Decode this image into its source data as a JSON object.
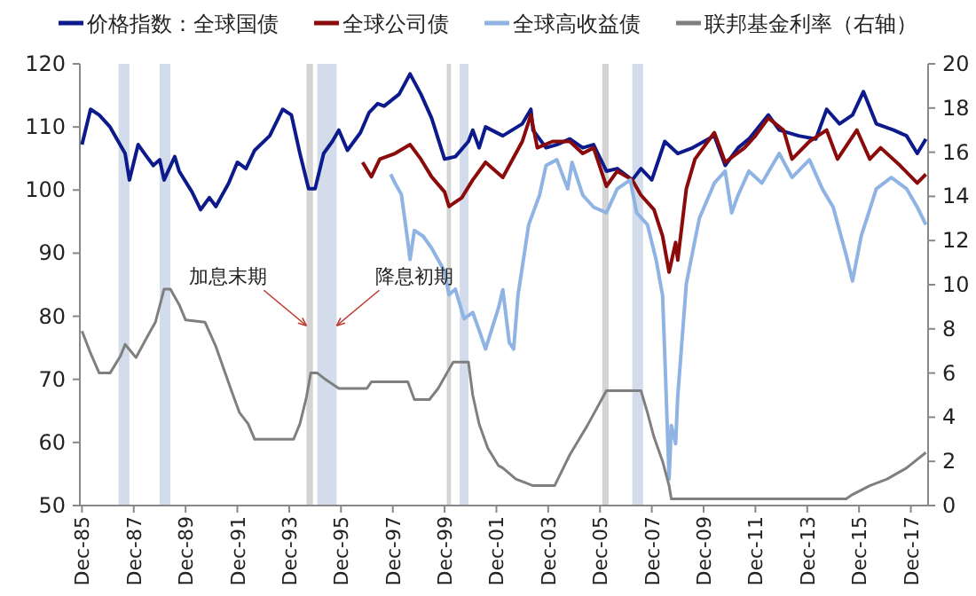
{
  "chart_data": {
    "type": "line",
    "legend": "top",
    "xlim": [
      "1985-11",
      "2018-08"
    ],
    "xticks": [
      {
        "value": "1985-12",
        "label": "Dec-85"
      },
      {
        "value": "1987-12",
        "label": "Dec-87"
      },
      {
        "value": "1989-12",
        "label": "Dec-89"
      },
      {
        "value": "1991-12",
        "label": "Dec-91"
      },
      {
        "value": "1993-12",
        "label": "Dec-93"
      },
      {
        "value": "1995-12",
        "label": "Dec-95"
      },
      {
        "value": "1997-12",
        "label": "Dec-97"
      },
      {
        "value": "1999-12",
        "label": "Dec-99"
      },
      {
        "value": "2001-12",
        "label": "Dec-01"
      },
      {
        "value": "2003-12",
        "label": "Dec-03"
      },
      {
        "value": "2005-12",
        "label": "Dec-05"
      },
      {
        "value": "2007-12",
        "label": "Dec-07"
      },
      {
        "value": "2009-12",
        "label": "Dec-09"
      },
      {
        "value": "2011-12",
        "label": "Dec-11"
      },
      {
        "value": "2013-12",
        "label": "Dec-13"
      },
      {
        "value": "2015-12",
        "label": "Dec-15"
      },
      {
        "value": "2017-12",
        "label": "Dec-17"
      }
    ],
    "ylim": [
      50,
      120
    ],
    "yticks": [
      50,
      60,
      70,
      80,
      90,
      100,
      110,
      120
    ],
    "y2lim": [
      0,
      20
    ],
    "y2ticks": [
      0,
      2,
      4,
      6,
      8,
      10,
      12,
      14,
      16,
      18,
      20
    ],
    "bands": [
      {
        "axis": "x",
        "from": "1987-05",
        "to": "1987-10",
        "color": "#d3dcea"
      },
      {
        "axis": "x",
        "from": "1988-12",
        "to": "1989-05",
        "color": "#d3dcea"
      },
      {
        "axis": "x",
        "from": "1994-08",
        "to": "1994-11",
        "color": "#d4d4d4"
      },
      {
        "axis": "x",
        "from": "1995-01",
        "to": "1995-10",
        "color": "#d3dcea"
      },
      {
        "axis": "x",
        "from": "2000-01",
        "to": "2000-03",
        "color": "#d4d4d4"
      },
      {
        "axis": "x",
        "from": "2000-07",
        "to": "2000-11",
        "color": "#d3dcea"
      },
      {
        "axis": "x",
        "from": "2006-01",
        "to": "2006-04",
        "color": "#d4d4d4"
      },
      {
        "axis": "x",
        "from": "2007-03",
        "to": "2007-08",
        "color": "#d3dcea"
      }
    ],
    "annotations": [
      {
        "text": "加息末期",
        "x": "1994-08",
        "y": 78.5
      },
      {
        "text": "降息初期",
        "x": "1995-10",
        "y": 78.5
      }
    ],
    "series": [
      {
        "name": "价格指数：全球国债",
        "color": "#0c1a8c",
        "x": [
          "1985-12",
          "1986-04",
          "1986-08",
          "1987-01",
          "1987-08",
          "1987-10",
          "1988-02",
          "1988-06",
          "1988-09",
          "1988-12",
          "1989-02",
          "1989-07",
          "1989-09",
          "1990-03",
          "1990-07",
          "1990-11",
          "1991-02",
          "1991-08",
          "1991-12",
          "1992-04",
          "1992-08",
          "1993-03",
          "1993-09",
          "1994-01",
          "1994-05",
          "1994-09",
          "1994-12",
          "1995-04",
          "1995-08",
          "1995-11",
          "1996-03",
          "1996-09",
          "1997-01",
          "1997-05",
          "1997-08",
          "1998-03",
          "1998-08",
          "1999-01",
          "1999-06",
          "1999-12",
          "2000-05",
          "2000-11",
          "2001-01",
          "2001-04",
          "2001-07",
          "2002-03",
          "2002-12",
          "2003-04",
          "2003-05",
          "2003-11",
          "2004-04",
          "2004-10",
          "2005-04",
          "2005-09",
          "2006-03",
          "2006-08",
          "2007-03",
          "2007-07",
          "2007-12",
          "2008-06",
          "2008-12",
          "2009-07",
          "2010-05",
          "2010-10",
          "2011-04",
          "2011-09",
          "2012-06",
          "2012-11",
          "2013-08",
          "2014-04",
          "2014-09",
          "2015-03",
          "2015-09",
          "2016-02",
          "2016-08",
          "2017-04",
          "2017-10",
          "2018-03",
          "2018-07"
        ],
        "values": [
          107.2,
          112.8,
          111.9,
          110.0,
          105.8,
          101.6,
          107.2,
          105.3,
          103.9,
          104.8,
          101.6,
          105.3,
          103.0,
          99.7,
          96.9,
          98.8,
          97.4,
          101.1,
          104.4,
          103.4,
          106.3,
          108.6,
          112.8,
          111.9,
          105.8,
          100.2,
          100.2,
          105.8,
          107.7,
          109.5,
          106.3,
          109.1,
          112.3,
          113.7,
          113.3,
          115.2,
          118.4,
          115.2,
          111.4,
          104.9,
          105.3,
          107.7,
          109.5,
          106.7,
          110.0,
          108.6,
          110.5,
          112.8,
          109.5,
          106.7,
          107.2,
          108.1,
          106.7,
          107.2,
          103.0,
          103.4,
          101.6,
          103.4,
          101.6,
          107.7,
          105.8,
          106.7,
          108.6,
          103.9,
          106.7,
          108.1,
          111.9,
          109.5,
          108.6,
          108.1,
          112.8,
          110.5,
          111.9,
          115.6,
          110.5,
          109.5,
          108.6,
          105.8,
          108.1
        ]
      },
      {
        "name": "全球公司债",
        "color": "#8b0a0a",
        "x": [
          "1996-10",
          "1997-02",
          "1997-06",
          "1998-01",
          "1998-08",
          "1999-01",
          "1999-06",
          "1999-12",
          "2000-02",
          "2000-08",
          "2001-01",
          "2001-07",
          "2002-03",
          "2002-12",
          "2003-04",
          "2003-07",
          "2004-02",
          "2004-10",
          "2005-04",
          "2005-09",
          "2006-03",
          "2006-08",
          "2007-03",
          "2007-07",
          "2008-01",
          "2008-05",
          "2008-08",
          "2008-11",
          "2008-12",
          "2009-04",
          "2009-08",
          "2010-05",
          "2010-10",
          "2011-07",
          "2011-12",
          "2012-06",
          "2013-01",
          "2013-05",
          "2014-01",
          "2014-09",
          "2015-02",
          "2015-11",
          "2016-05",
          "2016-10",
          "2017-07",
          "2018-03",
          "2018-07"
        ],
        "values": [
          104.4,
          102.1,
          104.9,
          105.8,
          107.2,
          104.9,
          102.1,
          99.7,
          97.4,
          98.8,
          101.6,
          104.4,
          102.0,
          107.7,
          111.9,
          106.7,
          107.7,
          107.7,
          105.8,
          106.7,
          100.6,
          103.0,
          101.6,
          99.2,
          96.9,
          92.7,
          87.0,
          91.7,
          88.9,
          100.2,
          104.9,
          109.1,
          104.4,
          106.7,
          108.6,
          111.4,
          109.5,
          104.9,
          107.7,
          109.5,
          104.9,
          109.5,
          104.9,
          106.7,
          103.9,
          101.1,
          102.5
        ]
      },
      {
        "name": "全球高收益债",
        "color": "#8fb4e3",
        "x": [
          "1997-11",
          "1998-01",
          "1998-04",
          "1998-07",
          "1998-08",
          "1998-10",
          "1999-02",
          "1999-06",
          "1999-12",
          "2000-02",
          "2000-05",
          "2000-09",
          "2001-01",
          "2001-04",
          "2001-07",
          "2002-01",
          "2002-03",
          "2002-06",
          "2002-08",
          "2002-10",
          "2003-03",
          "2003-08",
          "2003-11",
          "2004-04",
          "2004-09",
          "2004-11",
          "2005-04",
          "2005-09",
          "2006-03",
          "2006-08",
          "2007-02",
          "2007-05",
          "2007-10",
          "2008-02",
          "2008-05",
          "2008-06",
          "2008-08",
          "2008-09",
          "2008-11",
          "2008-12",
          "2009-04",
          "2009-10",
          "2010-05",
          "2010-10",
          "2011-01",
          "2011-04",
          "2011-09",
          "2012-03",
          "2012-11",
          "2013-05",
          "2014-01",
          "2014-07",
          "2014-12",
          "2015-06",
          "2015-09",
          "2016-01",
          "2016-08",
          "2017-03",
          "2017-10",
          "2018-03",
          "2018-07"
        ],
        "values": [
          102.5,
          101.1,
          99.3,
          91.8,
          89.0,
          93.6,
          92.7,
          90.8,
          87.1,
          83.4,
          84.3,
          79.6,
          80.6,
          77.8,
          74.8,
          81.4,
          84.2,
          75.8,
          74.8,
          83.3,
          94.5,
          99.2,
          103.9,
          104.8,
          100.2,
          104.4,
          99.2,
          97.3,
          96.4,
          100.2,
          101.6,
          96.4,
          94.5,
          88.9,
          83.3,
          73.9,
          54.2,
          62.7,
          59.8,
          67.3,
          85.2,
          95.5,
          101.1,
          103.0,
          96.4,
          99.2,
          103.0,
          101.1,
          105.8,
          102.0,
          104.8,
          100.2,
          97.3,
          89.8,
          85.6,
          92.7,
          100.2,
          102.0,
          100.2,
          97.3,
          94.5
        ]
      },
      {
        "name": "联邦基金利率（右轴）",
        "color": "#7f7f7f",
        "axis": "y2",
        "x": [
          "1985-12",
          "1986-04",
          "1986-08",
          "1987-01",
          "1987-06",
          "1987-08",
          "1988-01",
          "1988-06",
          "1988-10",
          "1989-02",
          "1989-05",
          "1989-09",
          "1989-12",
          "1990-09",
          "1991-02",
          "1991-06",
          "1991-10",
          "1992-01",
          "1992-05",
          "1992-08",
          "1994-02",
          "1994-05",
          "1994-08",
          "1994-10",
          "1995-01",
          "1995-05",
          "1995-11",
          "1996-12",
          "1997-02",
          "1998-07",
          "1998-10",
          "1999-05",
          "1999-09",
          "2000-04",
          "2000-11",
          "2001-01",
          "2001-04",
          "2001-08",
          "2002-01",
          "2002-03",
          "2002-09",
          "2003-05",
          "2004-03",
          "2004-10",
          "2005-06",
          "2006-03",
          "2007-07",
          "2007-10",
          "2008-01",
          "2008-05",
          "2008-08",
          "2008-09",
          "2015-06",
          "2015-09",
          "2016-05",
          "2017-01",
          "2017-10",
          "2018-07"
        ],
        "values": [
          7.9,
          6.9,
          6.0,
          6.0,
          6.8,
          7.3,
          6.7,
          7.6,
          8.3,
          9.8,
          9.8,
          9.1,
          8.4,
          8.3,
          7.2,
          6.1,
          5.0,
          4.2,
          3.7,
          3.0,
          3.0,
          3.7,
          4.9,
          6.0,
          6.0,
          5.7,
          5.3,
          5.3,
          5.6,
          5.6,
          4.8,
          4.8,
          5.3,
          6.5,
          6.5,
          5.0,
          3.7,
          2.6,
          1.8,
          1.7,
          1.2,
          0.9,
          0.9,
          2.3,
          3.6,
          5.2,
          5.2,
          4.2,
          3.1,
          2.0,
          0.9,
          0.3,
          0.3,
          0.5,
          0.9,
          1.2,
          1.7,
          2.4
        ]
      }
    ]
  }
}
